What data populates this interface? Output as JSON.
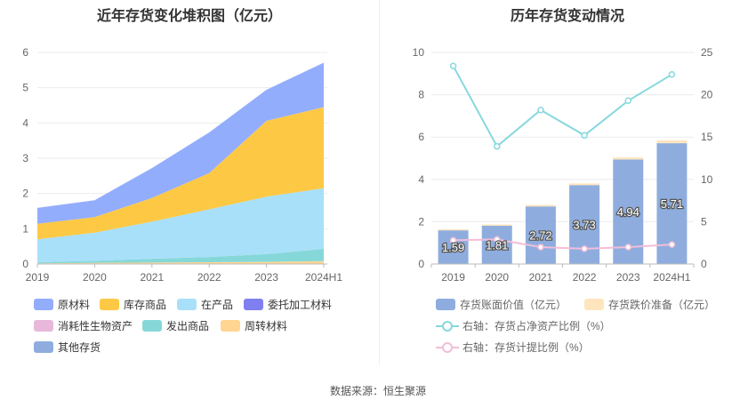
{
  "page": {
    "left_title": "近年存货变化堆积图（亿元）",
    "right_title": "历年存货变动情况",
    "source": "数据来源：恒生聚源"
  },
  "chart_data": [
    {
      "type": "area",
      "stacked": true,
      "title": "近年存货变化堆积图（亿元）",
      "categories": [
        "2019",
        "2020",
        "2021",
        "2022",
        "2023",
        "2024H1"
      ],
      "ylim": [
        0,
        6
      ],
      "yticks": [
        "0",
        "1",
        "2",
        "3",
        "4",
        "5",
        "6"
      ],
      "grid": true,
      "legend_position": "bottom",
      "series": [
        {
          "name": "周转材料",
          "color": "#FFD591",
          "values": [
            0.02,
            0.03,
            0.04,
            0.05,
            0.06,
            0.08
          ]
        },
        {
          "name": "发出商品",
          "color": "#86D8D8",
          "values": [
            0.03,
            0.06,
            0.11,
            0.15,
            0.22,
            0.35
          ]
        },
        {
          "name": "在产品",
          "color": "#A8E0FA",
          "values": [
            0.65,
            0.8,
            1.05,
            1.35,
            1.63,
            1.72
          ]
        },
        {
          "name": "库存商品",
          "color": "#FDC945",
          "values": [
            0.44,
            0.44,
            0.67,
            1.03,
            2.15,
            2.3
          ]
        },
        {
          "name": "原材料",
          "color": "#93ADFD",
          "values": [
            0.45,
            0.48,
            0.85,
            1.15,
            0.88,
            1.26
          ]
        }
      ],
      "legend": [
        {
          "name": "原材料",
          "color": "#93ADFD"
        },
        {
          "name": "库存商品",
          "color": "#FDC945"
        },
        {
          "name": "在产品",
          "color": "#A8E0FA"
        },
        {
          "name": "委托加工材料",
          "color": "#7F7FF0"
        },
        {
          "name": "消耗性生物资产",
          "color": "#E8B8DA"
        },
        {
          "name": "发出商品",
          "color": "#86D8D8"
        },
        {
          "name": "周转材料",
          "color": "#FFD591"
        },
        {
          "name": "其他存货",
          "color": "#8EADDE"
        }
      ]
    },
    {
      "type": "bar",
      "title": "历年存货变动情况",
      "categories": [
        "2019",
        "2020",
        "2021",
        "2022",
        "2023",
        "2024H1"
      ],
      "ylim_left": [
        0,
        10
      ],
      "ylim_right": [
        0,
        25
      ],
      "yticks_left": [
        "0",
        "2",
        "4",
        "6",
        "8",
        "10"
      ],
      "yticks_right": [
        "0",
        "5",
        "10",
        "15",
        "20",
        "25"
      ],
      "grid": true,
      "legend_position": "bottom",
      "series": [
        {
          "name": "存货账面价值（亿元）",
          "axis": "left",
          "type": "bar",
          "color": "#8EADDE",
          "values": [
            1.59,
            1.81,
            2.72,
            3.73,
            4.94,
            5.71
          ],
          "labels": [
            "1.59",
            "1.81",
            "2.72",
            "3.73",
            "4.94",
            "5.71"
          ]
        },
        {
          "name": "存货跌价准备（亿元）",
          "axis": "left",
          "type": "bar",
          "color": "#FEE5BE",
          "values": [
            0.05,
            0.06,
            0.07,
            0.08,
            0.1,
            0.14
          ]
        },
        {
          "name": "右轴：存货占净资产比例（%）",
          "axis": "right",
          "type": "line",
          "color": "#86D8DE",
          "values": [
            23.4,
            13.9,
            18.2,
            15.2,
            19.3,
            22.4
          ]
        },
        {
          "name": "右轴：存货计提比例（%）",
          "axis": "right",
          "type": "line",
          "color": "#F2BDD8",
          "values": [
            2.8,
            2.9,
            2.0,
            1.8,
            2.0,
            2.3
          ]
        }
      ]
    }
  ]
}
